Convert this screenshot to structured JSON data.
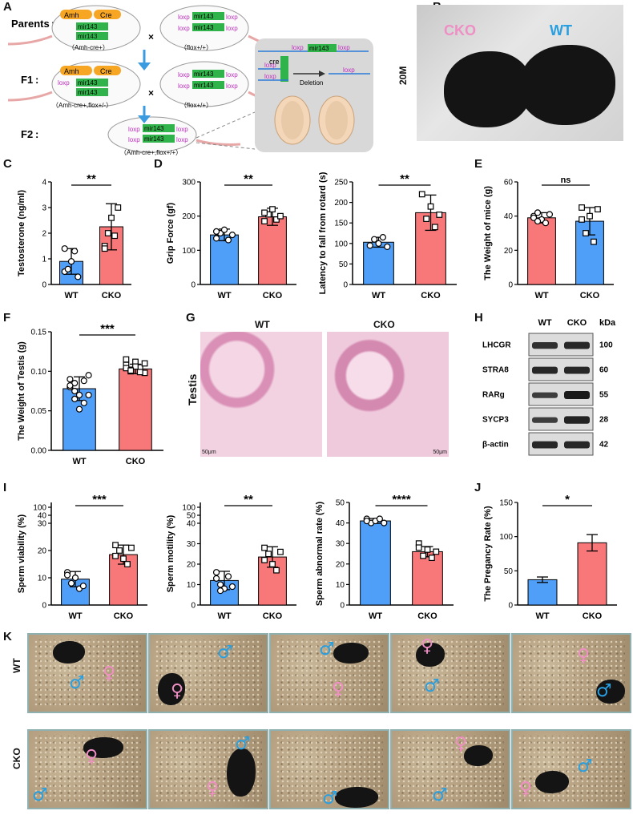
{
  "panels": {
    "A": {
      "label": "A",
      "rows": [
        "Parents",
        "F1",
        "F2"
      ],
      "colon": ":",
      "genes": {
        "amh": "Amh",
        "cre": "Cre",
        "mir": "mir143",
        "loxp": "loxp",
        "cre_small": "cre"
      },
      "genotypes": [
        "（Amh-cre+）",
        "（flox+/+）",
        "（Amh-cre+,flox+/-）",
        "（flox+/+）",
        "（Amh-cre+,flox+/+）"
      ],
      "cross": "×",
      "deletion": "Deletion"
    },
    "B": {
      "label": "B",
      "age": "20M",
      "cko": "CKO",
      "wt": "WT"
    },
    "C": {
      "label": "C"
    },
    "D": {
      "label": "D"
    },
    "E": {
      "label": "E"
    },
    "F": {
      "label": "F"
    },
    "G": {
      "label": "G",
      "wt": "WT",
      "cko": "CKO",
      "tissue": "Testis",
      "scale": "50μm"
    },
    "H": {
      "label": "H",
      "cols": [
        "WT",
        "CKO"
      ],
      "kda": "kDa",
      "bands": [
        {
          "name": "LHCGR",
          "kda": "100",
          "wt": 0.75,
          "cko": 0.85
        },
        {
          "name": "STRA8",
          "kda": "60",
          "wt": 0.85,
          "cko": 0.85
        },
        {
          "name": "RARg",
          "kda": "55",
          "wt": 0.6,
          "cko": 1.0
        },
        {
          "name": "SYCP3",
          "kda": "28",
          "wt": 0.6,
          "cko": 0.9
        },
        {
          "name": "β-actin",
          "kda": "42",
          "wt": 0.85,
          "cko": 0.85
        }
      ]
    },
    "I": {
      "label": "I"
    },
    "J": {
      "label": "J"
    },
    "K": {
      "label": "K",
      "rows": [
        "WT",
        "CKO"
      ],
      "male": "♂",
      "female": "♀"
    }
  },
  "chart_data": [
    {
      "id": "C",
      "type": "bar",
      "categories": [
        "WT",
        "CKO"
      ],
      "values": [
        0.9,
        2.25
      ],
      "errors": [
        0.5,
        0.9
      ],
      "points": [
        [
          0.5,
          0.6,
          0.9,
          1.3,
          0.3,
          1.4
        ],
        [
          1.5,
          2.0,
          2.6,
          1.9,
          3.0,
          1.4
        ]
      ],
      "ylabel": "Testosterone (ng/ml)",
      "ylim": [
        0,
        4
      ],
      "yticks": [
        0,
        1,
        2,
        3,
        4
      ],
      "sig": "**",
      "colors": [
        "#4f9ef8",
        "#f8787a"
      ]
    },
    {
      "id": "D1",
      "type": "bar",
      "categories": [
        "WT",
        "CKO"
      ],
      "values": [
        145,
        198
      ],
      "errors": [
        17,
        25
      ],
      "points": [
        [
          135,
          150,
          160,
          130,
          145,
          155
        ],
        [
          185,
          205,
          220,
          190,
          200,
          210
        ]
      ],
      "ylabel": "Grip Force (gf)",
      "ylim": [
        0,
        300
      ],
      "yticks": [
        0,
        100,
        200,
        300
      ],
      "sig": "**",
      "colors": [
        "#4f9ef8",
        "#f8787a"
      ]
    },
    {
      "id": "D2",
      "type": "bar",
      "categories": [
        "WT",
        "CKO"
      ],
      "values": [
        103,
        175
      ],
      "errors": [
        12,
        43
      ],
      "points": [
        [
          95,
          110,
          100,
          115,
          92
        ],
        [
          220,
          160,
          190,
          140,
          170
        ]
      ],
      "ylabel": "Latency  to fall from rotard (s)",
      "ylim": [
        0,
        250
      ],
      "yticks": [
        0,
        50,
        100,
        150,
        200,
        250
      ],
      "sig": "**",
      "colors": [
        "#4f9ef8",
        "#f8787a"
      ]
    },
    {
      "id": "E",
      "type": "bar",
      "categories": [
        "WT",
        "CKO"
      ],
      "values": [
        39,
        37
      ],
      "errors": [
        3,
        8
      ],
      "points": [
        [
          40,
          42,
          38,
          36,
          41,
          39,
          37
        ],
        [
          45,
          30,
          40,
          25,
          44,
          38
        ]
      ],
      "ylabel": "The Weight of mice (g)",
      "ylim": [
        0,
        60
      ],
      "yticks": [
        0,
        20,
        40,
        60
      ],
      "sig": "ns",
      "colors": [
        "#f8787a",
        "#4f9ef8"
      ]
    },
    {
      "id": "F",
      "type": "bar",
      "categories": [
        "WT",
        "CKO"
      ],
      "values": [
        0.078,
        0.103
      ],
      "errors": [
        0.015,
        0.006
      ],
      "points": [
        [
          0.09,
          0.085,
          0.07,
          0.06,
          0.095,
          0.08,
          0.075,
          0.052,
          0.088,
          0.07,
          0.082,
          0.065
        ],
        [
          0.108,
          0.1,
          0.112,
          0.105,
          0.098,
          0.115,
          0.102,
          0.106,
          0.099,
          0.11,
          0.104,
          0.101
        ]
      ],
      "ylabel": "The Weight of Testis (g)",
      "ylim": [
        0,
        0.15
      ],
      "yticks": [
        0,
        0.05,
        0.1,
        0.15
      ],
      "yticklabels": [
        "0.00",
        "0.05",
        "0.10",
        "0.15"
      ],
      "sig": "***",
      "colors": [
        "#4f9ef8",
        "#f8787a"
      ]
    },
    {
      "id": "I1",
      "type": "bar",
      "categories": [
        "WT",
        "CKO"
      ],
      "values": [
        9.5,
        18.5
      ],
      "errors": [
        2.8,
        3.5
      ],
      "points": [
        [
          12,
          8,
          10,
          6,
          7,
          11
        ],
        [
          22,
          20,
          17,
          15,
          21,
          18
        ]
      ],
      "ylabel": "Sperm  viability (%)",
      "ylim": [
        0,
        30
      ],
      "yticks": [
        0,
        10,
        20,
        30
      ],
      "break_ticks": [
        "40",
        "100"
      ],
      "sig": "***",
      "colors": [
        "#4f9ef8",
        "#f8787a"
      ]
    },
    {
      "id": "I2",
      "type": "bar",
      "categories": [
        "WT",
        "CKO"
      ],
      "values": [
        12,
        23.5
      ],
      "errors": [
        4.5,
        5
      ],
      "points": [
        [
          16,
          10,
          8,
          14,
          9,
          13,
          7
        ],
        [
          28,
          25,
          20,
          17,
          26,
          22
        ]
      ],
      "ylabel": "Sperm  motility (%)",
      "ylim": [
        0,
        40
      ],
      "yticks": [
        0,
        10,
        20,
        30,
        40
      ],
      "break_ticks": [
        "50",
        "100"
      ],
      "sig": "**",
      "colors": [
        "#4f9ef8",
        "#f8787a"
      ]
    },
    {
      "id": "I3",
      "type": "bar",
      "categories": [
        "WT",
        "CKO"
      ],
      "values": [
        41,
        26
      ],
      "errors": [
        1.2,
        2.5
      ],
      "points": [
        [
          42,
          40,
          41,
          42,
          40,
          41
        ],
        [
          30,
          24,
          27,
          23,
          26,
          28
        ]
      ],
      "ylabel": "Sperm  abnormal rate (%)",
      "ylim": [
        0,
        50
      ],
      "yticks": [
        0,
        10,
        20,
        30,
        40,
        50
      ],
      "sig": "****",
      "colors": [
        "#4f9ef8",
        "#f8787a"
      ]
    },
    {
      "id": "J",
      "type": "bar",
      "categories": [
        "WT",
        "CKO"
      ],
      "values": [
        37,
        91
      ],
      "errors": [
        4,
        12
      ],
      "points": [
        [],
        []
      ],
      "ylabel": "The Pregancy Rate (%)",
      "ylim": [
        0,
        150
      ],
      "yticks": [
        0,
        50,
        100,
        150
      ],
      "sig": "*",
      "colors": [
        "#4f9ef8",
        "#f8787a"
      ]
    }
  ]
}
